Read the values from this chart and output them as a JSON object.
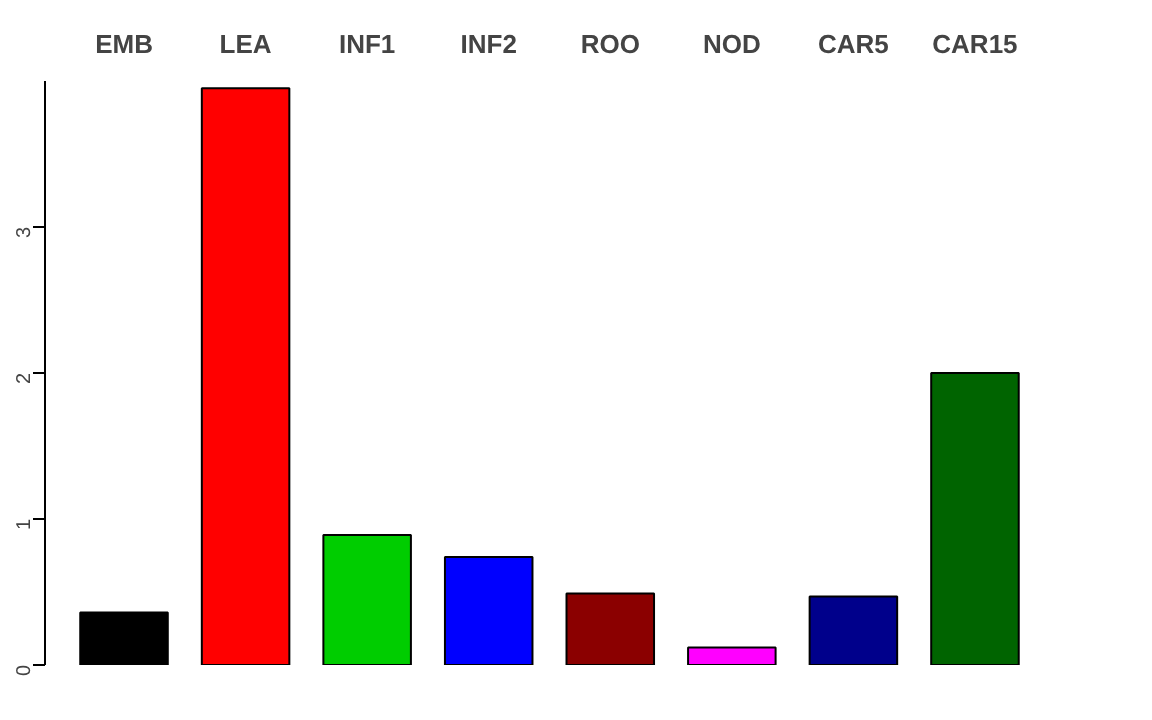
{
  "chart_data": {
    "type": "bar",
    "categories": [
      "EMB",
      "LEA",
      "INF1",
      "INF2",
      "ROO",
      "NOD",
      "CAR5",
      "CAR15"
    ],
    "values": [
      0.36,
      3.95,
      0.89,
      0.74,
      0.49,
      0.12,
      0.47,
      2.0
    ],
    "colors": [
      "#000000",
      "#ff0000",
      "#00cd00",
      "#0000ff",
      "#8b0000",
      "#ff00ff",
      "#00008b",
      "#006400"
    ],
    "ylim": [
      0,
      4.0
    ],
    "yticks": [
      0,
      1,
      2,
      3
    ],
    "grid": false
  }
}
